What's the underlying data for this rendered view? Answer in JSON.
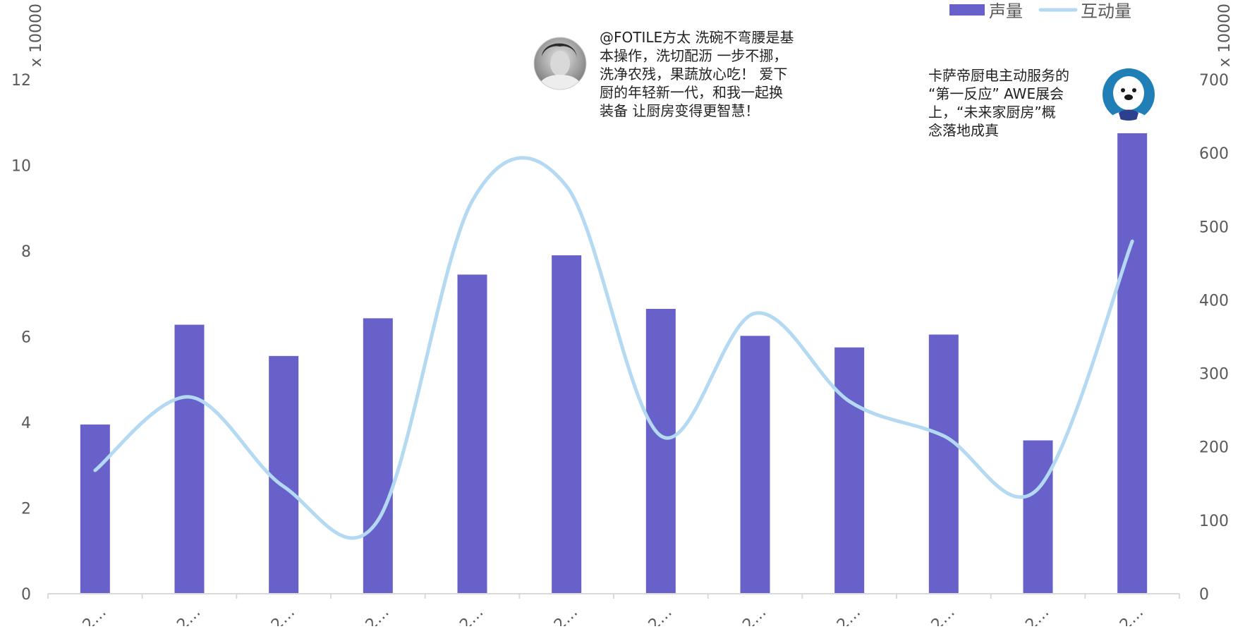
{
  "colors": {
    "bar": "#6761c9",
    "line": "#b4d9f2",
    "axis": "#d9d9d9",
    "text": "#595959",
    "annotation_text": "#222222"
  },
  "chart_data": {
    "type": "bar",
    "categories": [
      "2…",
      "2…",
      "2…",
      "2…",
      "2…",
      "2…",
      "2…",
      "2…",
      "2…",
      "2…",
      "2…",
      "2…"
    ],
    "series": [
      {
        "name": "声量",
        "type": "bar",
        "axis": "left",
        "values": [
          39500,
          62800,
          55500,
          64300,
          74500,
          79000,
          66500,
          60200,
          57500,
          60500,
          35800,
          107500
        ]
      },
      {
        "name": "互动量",
        "type": "line",
        "axis": "right",
        "smooth": true,
        "values": [
          1680000,
          2680000,
          1460000,
          1000000,
          5350000,
          5550000,
          2150000,
          3820000,
          2620000,
          2150000,
          1430000,
          4800000
        ]
      }
    ],
    "y_left": {
      "unit_label": "x 10000",
      "ticks": [
        "0",
        "2",
        "4",
        "6",
        "8",
        "10",
        "12"
      ],
      "range": [
        0,
        120000
      ]
    },
    "y_right": {
      "unit_label": "x 10000",
      "ticks": [
        "0",
        "100",
        "200",
        "300",
        "400",
        "500",
        "600",
        "700"
      ],
      "range": [
        0,
        7000000
      ]
    },
    "legend_position": "top-right",
    "grid": false,
    "annotations": [
      {
        "category_index": 5,
        "avatar": "person-photo-icon",
        "text": "@FOTILE方太 洗碗不弯腰是基\n本操作，洗切配沥 一步不挪，\n洗净农残，果蔬放心吃！ 爱下\n厨的年轻新一代，和我一起换\n装备 让厨房变得更智慧！"
      },
      {
        "category_index": 11,
        "avatar": "seal-mascot-icon",
        "text": "卡萨帝厨电主动服务的\n“第一反应” AWE展会\n上，“未来家厨房”概\n念落地成真"
      }
    ]
  }
}
